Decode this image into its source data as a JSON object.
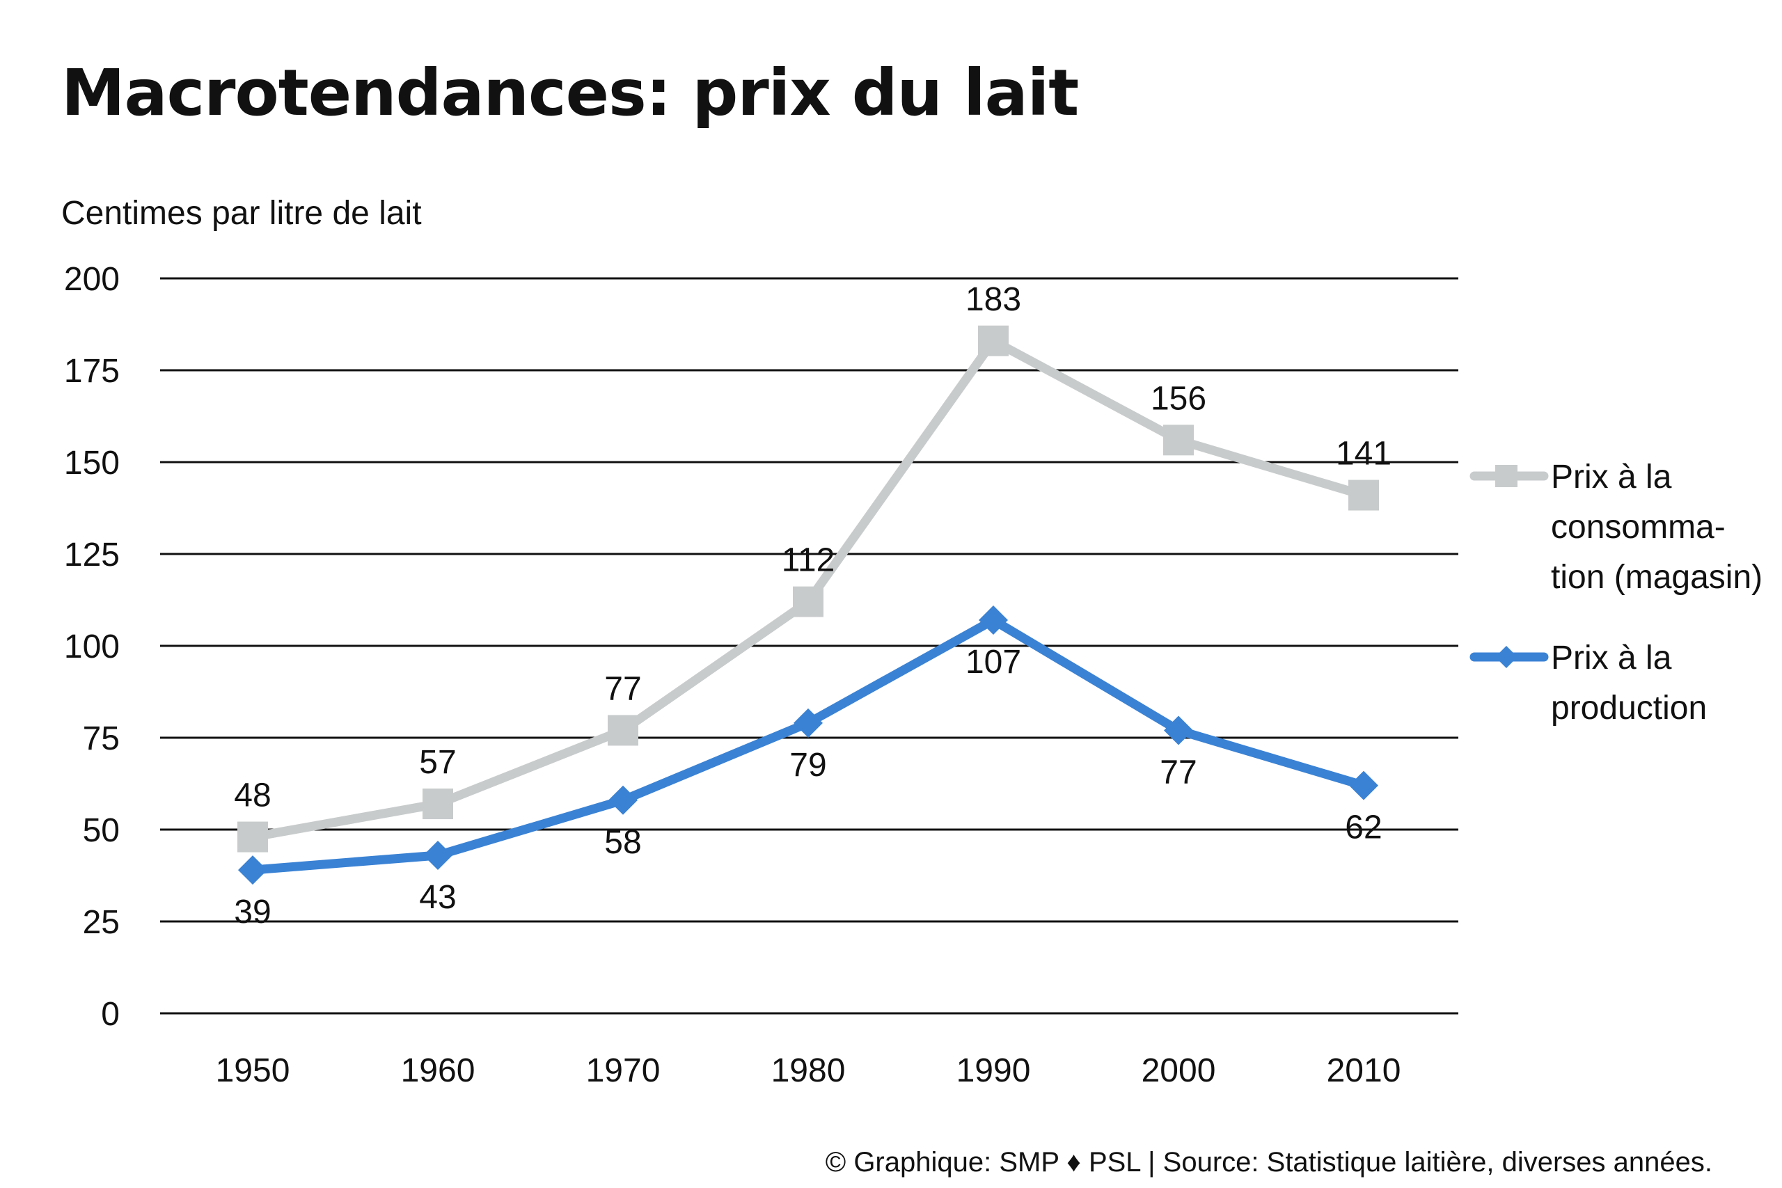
{
  "chart_data": {
    "type": "line",
    "title": "Macrotendances: prix du lait",
    "ylabel": "Centimes par litre de lait",
    "xlabel": "",
    "categories": [
      "1950",
      "1960",
      "1970",
      "1980",
      "1990",
      "2000",
      "2010"
    ],
    "ylim": [
      0,
      200
    ],
    "yticks": [
      "0",
      "25",
      "50",
      "75",
      "100",
      "125",
      "150",
      "175",
      "200"
    ],
    "grid": true,
    "legend_position": "right",
    "series": [
      {
        "name": "Prix à la consommation (magasin)",
        "legend_lines": [
          "Prix à la",
          "consomma-",
          "tion (magasin)"
        ],
        "values": [
          48,
          57,
          77,
          112,
          183,
          156,
          141
        ],
        "color": "#c8cbcc",
        "marker": "square",
        "label_position": "above"
      },
      {
        "name": "Prix à la production",
        "legend_lines": [
          "Prix à la",
          "production"
        ],
        "values": [
          39,
          43,
          58,
          79,
          107,
          77,
          62
        ],
        "color": "#3a82d4",
        "marker": "diamond",
        "label_position": "below"
      }
    ],
    "source": "© Graphique: SMP ♦ PSL | Source: Statistique laitière, diverses années."
  }
}
